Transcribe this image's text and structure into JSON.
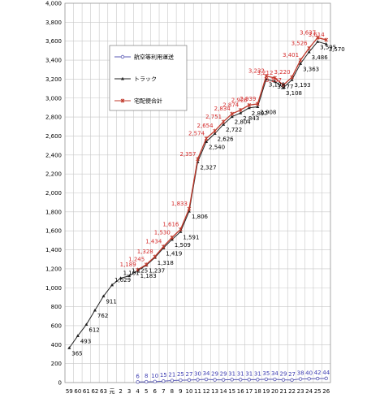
{
  "chart_data": {
    "type": "line",
    "categories": [
      "59",
      "60",
      "61",
      "62",
      "63",
      "元",
      "2",
      "3",
      "4",
      "5",
      "6",
      "7",
      "8",
      "9",
      "10",
      "11",
      "12",
      "13",
      "14",
      "15",
      "16",
      "17",
      "18",
      "19",
      "20",
      "21",
      "22",
      "23",
      "24",
      "25",
      "26"
    ],
    "ylim": [
      0,
      4000
    ],
    "yticks": [
      "0",
      "200",
      "400",
      "600",
      "800",
      "1,000",
      "1,200",
      "1,400",
      "1,600",
      "1,800",
      "2,000",
      "2,200",
      "2,400",
      "2,600",
      "2,800",
      "3,000",
      "3,200",
      "3,400",
      "3,600",
      "3,800",
      "4,000"
    ],
    "grid": true,
    "legend_position": "top-left (inside plot)",
    "series": [
      {
        "name": "航空等利用運送",
        "color": "#5a5ab4",
        "label_color": "#3b3bb0",
        "marker": "circle-open",
        "values": [
          null,
          null,
          null,
          null,
          null,
          null,
          null,
          null,
          6,
          8,
          10,
          15,
          21,
          25,
          27,
          30,
          34,
          29,
          29,
          31,
          31,
          31,
          31,
          35,
          34,
          29,
          27,
          38,
          40,
          42,
          44
        ],
        "labels": [
          "",
          "",
          "",
          "",
          "",
          "",
          "",
          "",
          "6",
          "8",
          "10",
          "15",
          "21",
          "25",
          "27",
          "30",
          "34",
          "29",
          "29",
          "31",
          "31",
          "31",
          "31",
          "35",
          "34",
          "29",
          "27",
          "38",
          "40",
          "42",
          "44"
        ]
      },
      {
        "name": "トラック",
        "color": "#222222",
        "label_color": "#000000",
        "marker": "triangle",
        "values": [
          365,
          493,
          612,
          762,
          911,
          1029,
          1101,
          1125,
          1183,
          1237,
          1318,
          1419,
          1509,
          1591,
          1806,
          2327,
          2540,
          2626,
          2722,
          2804,
          2843,
          2897,
          2908,
          3198,
          3177,
          3108,
          3193,
          3363,
          3486,
          3595,
          3570
        ],
        "labels": [
          "365",
          "493",
          "612",
          "762",
          "911",
          "1,029",
          "1,101",
          "1,125",
          "1,183",
          "1,237",
          "1,318",
          "1,419",
          "1,509",
          "1,591",
          "1,806",
          "2,327",
          "2,540",
          "2,626",
          "2,722",
          "2,804",
          "2,843",
          "2,897",
          "2,908",
          "3,198",
          "3,177",
          "3,108",
          "3,193",
          "3,363",
          "3,486",
          "3,595",
          "3,570"
        ]
      },
      {
        "name": "宅配便合計",
        "color": "#c0392b",
        "label_color": "#d42a2a",
        "marker": "star",
        "values": [
          null,
          null,
          null,
          null,
          null,
          null,
          null,
          null,
          1189,
          1245,
          1328,
          1434,
          1530,
          1616,
          1833,
          2357,
          2574,
          2654,
          2751,
          2834,
          2874,
          2926,
          2939,
          3232,
          3212,
          3137,
          3220,
          3401,
          3526,
          3637,
          3614
        ],
        "labels": [
          "",
          "",
          "",
          "",
          "",
          "",
          "",
          "",
          "1,189",
          "1,245",
          "1,328",
          "1,434",
          "1,530",
          "1,616",
          "1,833",
          "2,357",
          "2,574",
          "2,654",
          "2,751",
          "2,834",
          "2,874",
          "2,926",
          "2,939",
          "3,232",
          "3,212",
          "3,137",
          "3,220",
          "3,401",
          "3,526",
          "3,637",
          "3,614"
        ]
      }
    ]
  }
}
